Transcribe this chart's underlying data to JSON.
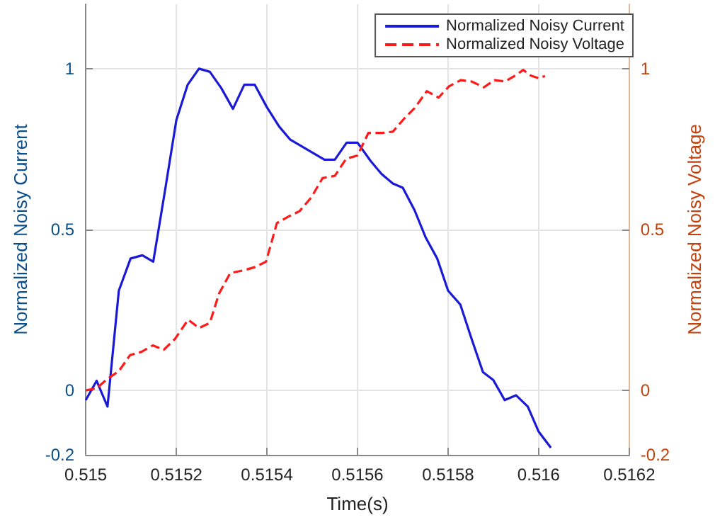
{
  "chart_data": {
    "type": "line",
    "xlabel": "Time(s)",
    "ylabel": "Normalized Noisy Current",
    "y2label": "Normalized Noisy Voltage",
    "xlim": [
      0.515,
      0.5162
    ],
    "xticks": [
      0.515,
      0.5152,
      0.5154,
      0.5156,
      0.5158,
      0.516,
      0.5162
    ],
    "ylim": [
      -0.2,
      1.2
    ],
    "yticks": [
      -0.2,
      0,
      0.5,
      1
    ],
    "y2lim": [
      -0.2,
      1.2
    ],
    "y2ticks": [
      -0.2,
      0,
      0.5,
      1
    ],
    "grid": true,
    "legend": "top right",
    "marker": "none",
    "series": [
      {
        "name": "Normalized Noisy Current",
        "color": "#1a1ad6",
        "line_style": "solid",
        "x": [
          0.515,
          0.515024,
          0.515048,
          0.515073,
          0.515099,
          0.515125,
          0.515149,
          0.515176,
          0.5152,
          0.515225,
          0.51525,
          0.515274,
          0.515299,
          0.515325,
          0.51535,
          0.515373,
          0.5154,
          0.515427,
          0.515451,
          0.515481,
          0.515505,
          0.515527,
          0.51555,
          0.515576,
          0.5156,
          0.515629,
          0.515653,
          0.515678,
          0.5157,
          0.515726,
          0.515751,
          0.515776,
          0.5158,
          0.515827,
          0.515852,
          0.515877,
          0.5159,
          0.515925,
          0.51595,
          0.515976,
          0.516,
          0.516027
        ],
        "values": [
          -0.03,
          0.03,
          -0.05,
          0.31,
          0.41,
          0.42,
          0.4,
          0.63,
          0.84,
          0.95,
          1.0,
          0.99,
          0.94,
          0.875,
          0.95,
          0.95,
          0.88,
          0.82,
          0.78,
          0.755,
          0.735,
          0.717,
          0.717,
          0.77,
          0.77,
          0.713,
          0.673,
          0.643,
          0.63,
          0.56,
          0.474,
          0.41,
          0.31,
          0.267,
          0.16,
          0.057,
          0.032,
          -0.03,
          -0.015,
          -0.05,
          -0.128,
          -0.178
        ]
      },
      {
        "name": "Normalized Noisy Voltage",
        "color": "#ff1a1a",
        "line_style": "dashed",
        "axis": "y2",
        "x": [
          0.515,
          0.515024,
          0.515048,
          0.515073,
          0.515098,
          0.515123,
          0.515148,
          0.515172,
          0.515197,
          0.515226,
          0.51525,
          0.515274,
          0.515294,
          0.515319,
          0.515348,
          0.515373,
          0.515398,
          0.515422,
          0.515447,
          0.515472,
          0.515498,
          0.515523,
          0.51555,
          0.515575,
          0.5156,
          0.515624,
          0.515653,
          0.515678,
          0.515702,
          0.515726,
          0.515753,
          0.515779,
          0.515802,
          0.515828,
          0.515852,
          0.515879,
          0.515902,
          0.515926,
          0.51595,
          0.515966,
          0.515983,
          0.516,
          0.516014
        ],
        "values": [
          0.0,
          0.007,
          0.036,
          0.06,
          0.11,
          0.12,
          0.14,
          0.126,
          0.16,
          0.22,
          0.194,
          0.21,
          0.3,
          0.365,
          0.373,
          0.383,
          0.4,
          0.52,
          0.54,
          0.557,
          0.6,
          0.66,
          0.667,
          0.72,
          0.73,
          0.8,
          0.8,
          0.804,
          0.843,
          0.877,
          0.93,
          0.91,
          0.945,
          0.964,
          0.96,
          0.942,
          0.964,
          0.96,
          0.98,
          0.996,
          0.978,
          0.97,
          0.977
        ]
      }
    ]
  }
}
